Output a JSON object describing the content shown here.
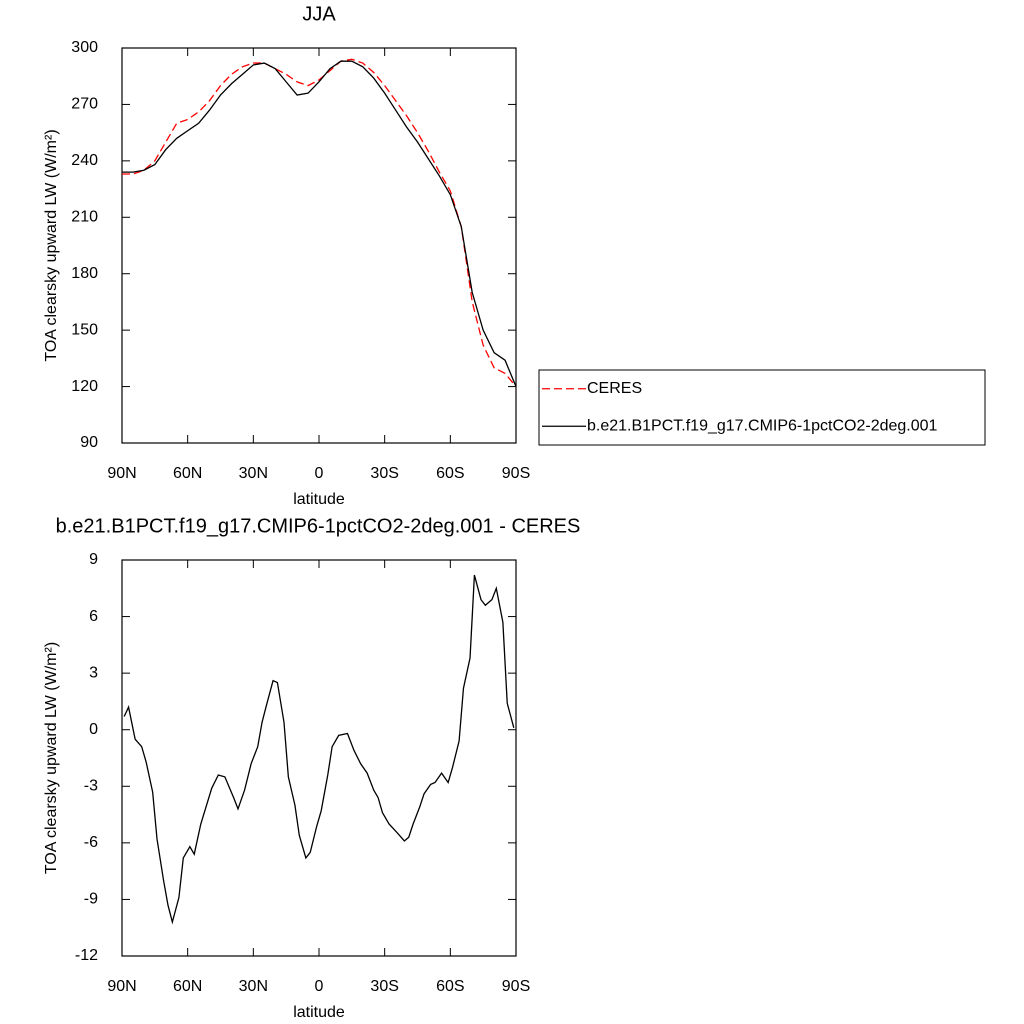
{
  "chart_data": [
    {
      "type": "line",
      "title": "JJA",
      "xlabel": "latitude",
      "ylabel": "TOA clearsky upward LW (W/m²)",
      "x": [
        90,
        85,
        80,
        75,
        70,
        65,
        60,
        55,
        50,
        45,
        40,
        35,
        30,
        25,
        20,
        15,
        10,
        5,
        0,
        -5,
        -10,
        -15,
        -20,
        -25,
        -30,
        -35,
        -40,
        -45,
        -50,
        -55,
        -60,
        -65,
        -70,
        -75,
        -80,
        -85,
        -90
      ],
      "series": [
        {
          "name": "CERES",
          "color": "#ff0000",
          "dashed": true,
          "values": [
            233,
            233,
            235,
            240,
            250,
            260,
            262,
            266,
            272,
            280,
            286,
            290,
            292,
            292,
            289,
            286,
            282,
            280,
            283,
            288,
            293,
            294,
            292,
            287,
            280,
            272,
            264,
            255,
            245,
            234,
            224,
            205,
            165,
            142,
            130,
            127,
            120
          ]
        },
        {
          "name": "b.e21.B1PCT.f19_g17.CMIP6-1pctCO2-2deg.001",
          "color": "#000000",
          "dashed": false,
          "values": [
            234,
            234,
            235,
            238,
            246,
            252,
            256,
            260,
            267,
            275,
            281,
            286,
            291,
            292,
            289,
            282,
            275,
            276,
            282,
            289,
            293,
            293,
            290,
            284,
            276,
            267,
            258,
            250,
            241,
            232,
            222,
            205,
            170,
            150,
            138,
            134,
            120
          ]
        }
      ],
      "xlim": [
        90,
        -90
      ],
      "xticks": [
        {
          "value": 90,
          "label": "90N"
        },
        {
          "value": 60,
          "label": "60N"
        },
        {
          "value": 30,
          "label": "30N"
        },
        0,
        {
          "value": -30,
          "label": "30S"
        },
        {
          "value": -60,
          "label": "60S"
        },
        {
          "value": -90,
          "label": "90S"
        }
      ],
      "ylim": [
        90,
        300
      ],
      "yticks": [
        90,
        120,
        150,
        180,
        210,
        240,
        270,
        300
      ],
      "legend": "right"
    },
    {
      "type": "line",
      "title": "b.e21.B1PCT.f19_g17.CMIP6-1pctCO2-2deg.001 - CERES",
      "xlabel": "latitude",
      "ylabel": "TOA clearsky upward LW (W/m²)",
      "x": [
        89,
        87,
        84,
        81,
        79,
        76,
        74,
        71,
        69,
        67,
        64,
        62,
        59,
        57,
        54,
        49,
        46,
        43,
        39,
        37,
        34,
        31,
        28,
        26,
        24,
        21,
        19,
        16,
        14,
        11,
        9,
        6,
        4,
        1,
        -1,
        -4,
        -6,
        -9,
        -13,
        -16,
        -19,
        -22,
        -25,
        -27,
        -29,
        -32,
        -36,
        -39,
        -41,
        -43,
        -46,
        -48,
        -51,
        -53,
        -56,
        -59,
        -61,
        -64,
        -66,
        -69,
        -71,
        -74,
        -76,
        -79,
        -81,
        -84,
        -86,
        -89
      ],
      "values": [
        0.7,
        1.2,
        -0.5,
        -0.9,
        -1.7,
        -3.3,
        -5.8,
        -8,
        -9.3,
        -10.2,
        -8.9,
        -6.8,
        -6.2,
        -6.6,
        -5,
        -3.1,
        -2.4,
        -2.5,
        -3.6,
        -4.2,
        -3.2,
        -1.8,
        -0.9,
        0.4,
        1.3,
        2.6,
        2.5,
        0.4,
        -2.5,
        -4,
        -5.6,
        -6.8,
        -6.5,
        -5.1,
        -4.3,
        -2.4,
        -0.9,
        -0.3,
        -0.2,
        -1.1,
        -1.8,
        -2.3,
        -3.2,
        -3.6,
        -4.4,
        -5,
        -5.5,
        -5.9,
        -5.7,
        -5,
        -4.1,
        -3.4,
        -2.9,
        -2.8,
        -2.3,
        -2.8,
        -2,
        -0.6,
        2.2,
        3.8,
        8.2,
        6.9,
        6.6,
        6.9,
        7.5,
        5.7,
        1.4,
        0.1
      ],
      "color": "#000000",
      "xlim": [
        90,
        -90
      ],
      "xticks": [
        {
          "value": 90,
          "label": "90N"
        },
        {
          "value": 60,
          "label": "60N"
        },
        {
          "value": 30,
          "label": "30N"
        },
        0,
        {
          "value": -30,
          "label": "30S"
        },
        {
          "value": -60,
          "label": "60S"
        },
        {
          "value": -90,
          "label": "90S"
        }
      ],
      "ylim": [
        -12,
        9
      ],
      "yticks": [
        -12,
        -9,
        -6,
        -3,
        0,
        3,
        6,
        9
      ]
    }
  ]
}
